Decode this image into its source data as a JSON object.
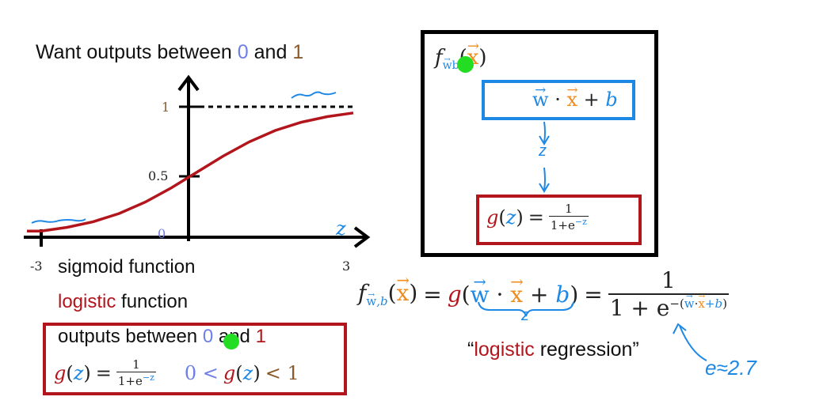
{
  "title": {
    "text": "Want outputs between",
    "zero": "0",
    "and": "and",
    "one": "1"
  },
  "chart_data": {
    "type": "line",
    "title": "sigmoid",
    "xlabel": "z",
    "ylabel": "",
    "x": [
      -3,
      -2.5,
      -2,
      -1.5,
      -1,
      -0.5,
      0,
      0.5,
      1,
      1.5,
      2,
      2.5,
      3
    ],
    "series": [
      {
        "name": "g(z)",
        "values": [
          0.047,
          0.076,
          0.119,
          0.182,
          0.269,
          0.378,
          0.5,
          0.622,
          0.731,
          0.818,
          0.881,
          0.924,
          0.953
        ]
      }
    ],
    "xlim": [
      -3,
      3
    ],
    "ylim": [
      0,
      1
    ],
    "tick_labels": {
      "x_left": "-3",
      "x_right": "3",
      "y_top": "1",
      "y_mid": "0.5",
      "origin": "0",
      "axis_name": "z"
    }
  },
  "labels": {
    "sigmoid": "sigmoid function",
    "logistic_word": "logistic",
    "function_word": "function",
    "outputs_text": "outputs between",
    "outputs_zero": "0",
    "outputs_and": "and",
    "outputs_one": "1"
  },
  "formula_small": {
    "g": "g",
    "z": "z",
    "eq": "=",
    "num": "1",
    "den_base": "1+e",
    "den_exp": "−z",
    "ineq_lt1": "0 <",
    "ineq_lt2": "< 1"
  },
  "box": {
    "f": "f",
    "sub_w": "w",
    "sub_b": "b",
    "x": "x",
    "inner_w": "w",
    "inner_dot": "·",
    "inner_x": "x",
    "inner_plus": "+",
    "inner_b": "b",
    "arrow_z": "z",
    "g": "g",
    "z": "z",
    "eq": "=",
    "num": "1",
    "den_base": "1+e",
    "den_exp": "−z"
  },
  "main_formula": {
    "f": "f",
    "sub": "w",
    "sub_b": ",b",
    "x": "x",
    "eq1": "=",
    "g": "g",
    "w": "w",
    "dot": "·",
    "x2": "x",
    "plus": "+",
    "b": "b",
    "eq2": "=",
    "num": "1",
    "den_a": "1 + e",
    "den_exp_w": "w",
    "den_exp_dot": "·",
    "den_exp_x": "x",
    "den_exp_b": "+b",
    "underbrace_z": "z"
  },
  "caption": {
    "open": "“",
    "word": "logistic",
    "rest": "regression”"
  },
  "annotation": {
    "text": "e≈2.7"
  },
  "colors": {
    "red": "#b3151c",
    "blue": "#1e88e5",
    "lightblue": "#6f7fe8",
    "orange": "#f08c1e",
    "brown": "#8b5a2b"
  }
}
